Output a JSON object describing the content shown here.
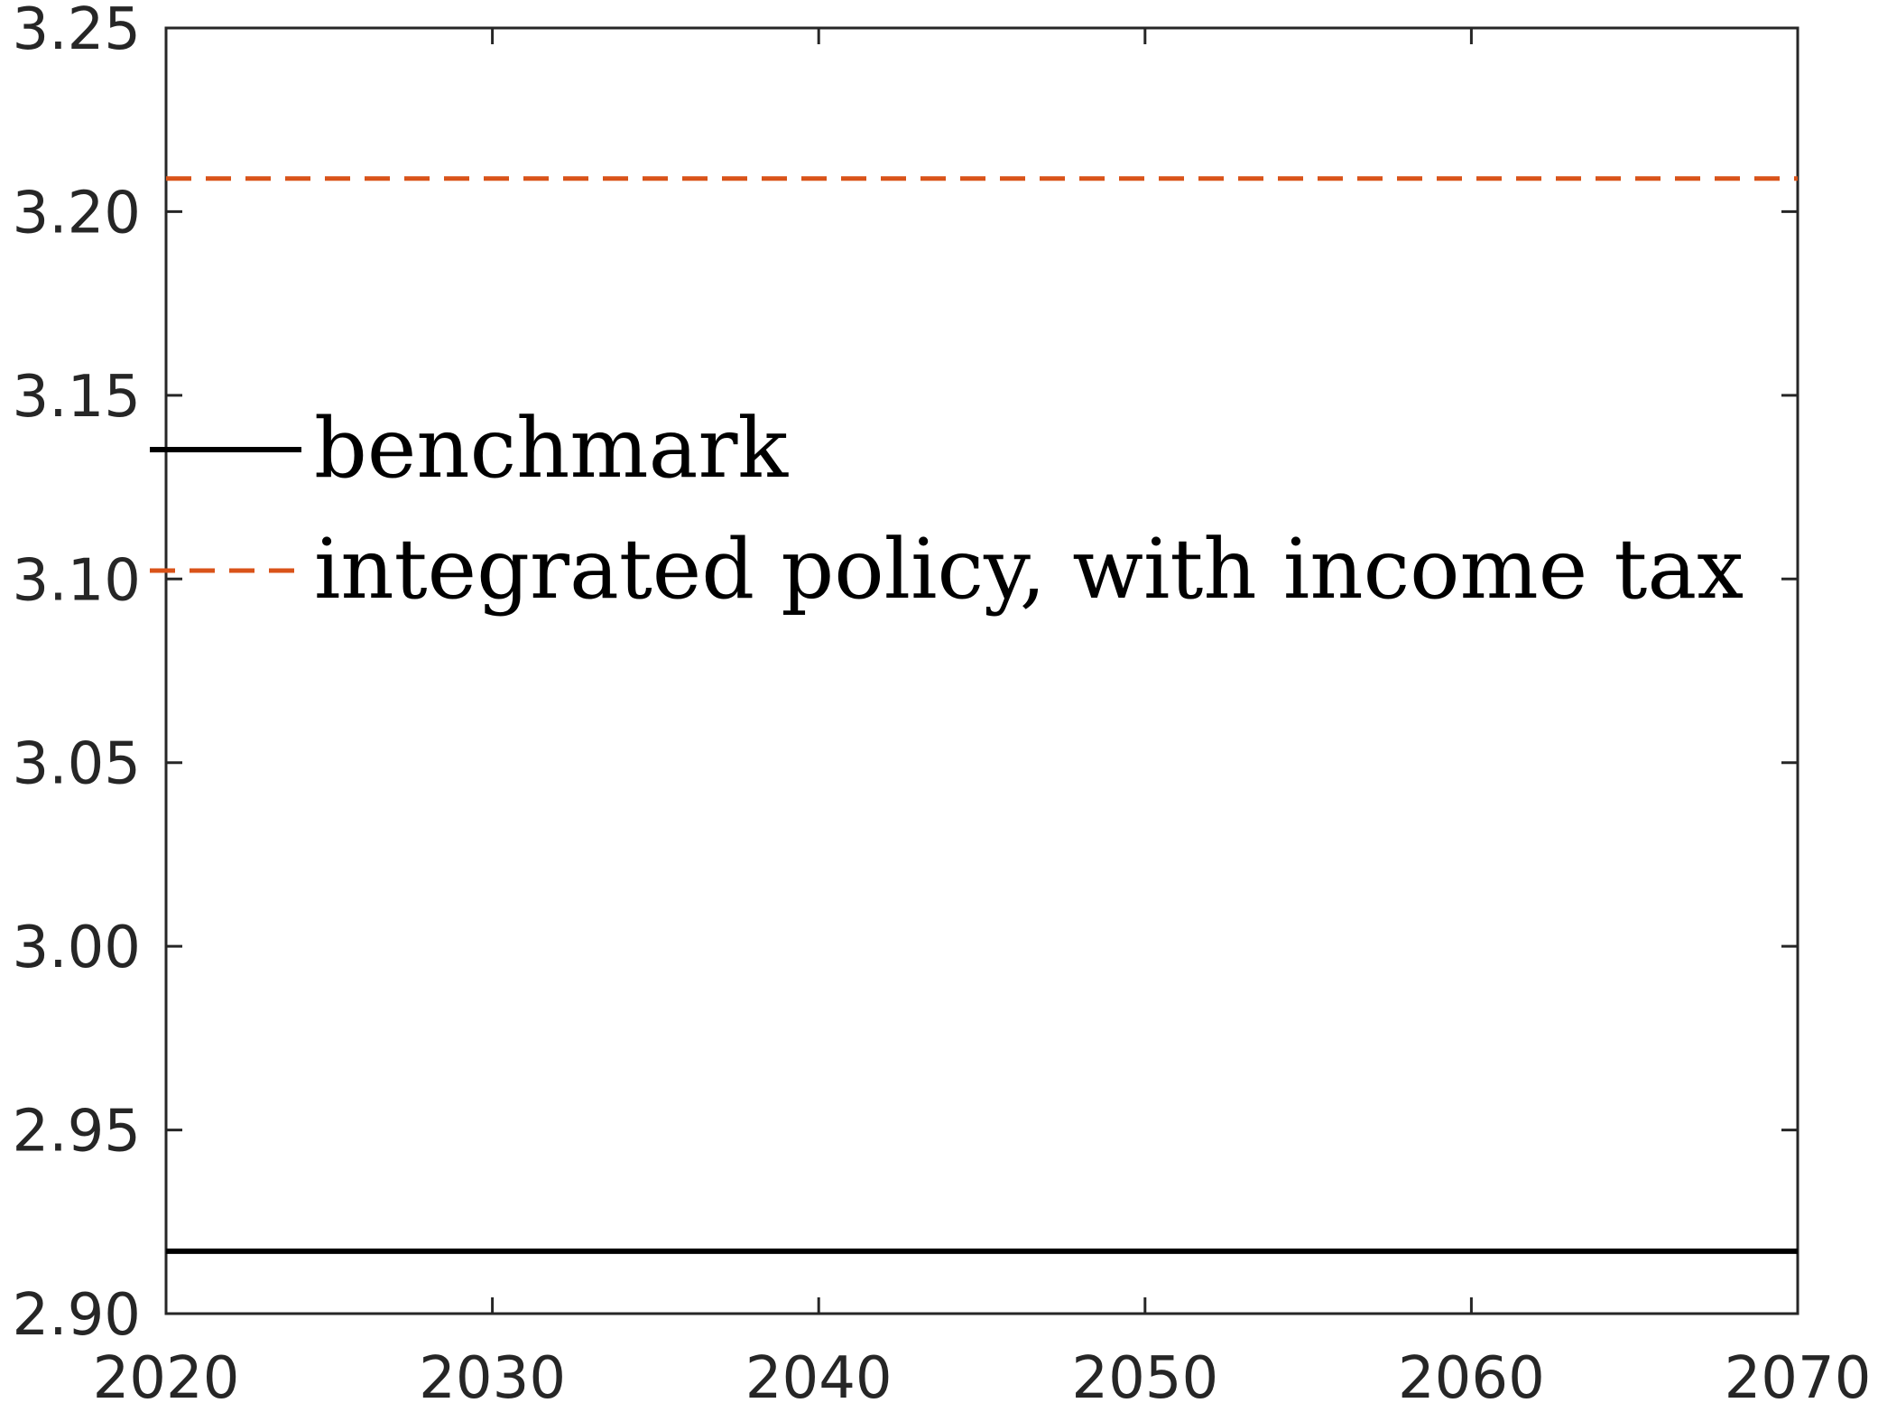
{
  "chart_data": {
    "type": "line",
    "title": "",
    "xlabel": "",
    "ylabel": "",
    "xlim": [
      2020,
      2070
    ],
    "ylim": [
      2.9,
      3.25
    ],
    "xticks": [
      "2020",
      "2030",
      "2040",
      "2050",
      "2060",
      "2070"
    ],
    "yticks": [
      "2.90",
      "2.95",
      "3.00",
      "3.05",
      "3.10",
      "3.15",
      "3.20",
      "3.25"
    ],
    "grid": false,
    "legend_position": "left, mid-upper, inside axes",
    "series": [
      {
        "name": "benchmark",
        "style": "solid",
        "color": "#000000",
        "x": [
          2020,
          2070
        ],
        "values": [
          2.917,
          2.917
        ]
      },
      {
        "name": "integrated policy, with income tax",
        "style": "dashed",
        "color": "#D95319",
        "x": [
          2020,
          2070
        ],
        "values": [
          3.209,
          3.209
        ]
      }
    ]
  }
}
